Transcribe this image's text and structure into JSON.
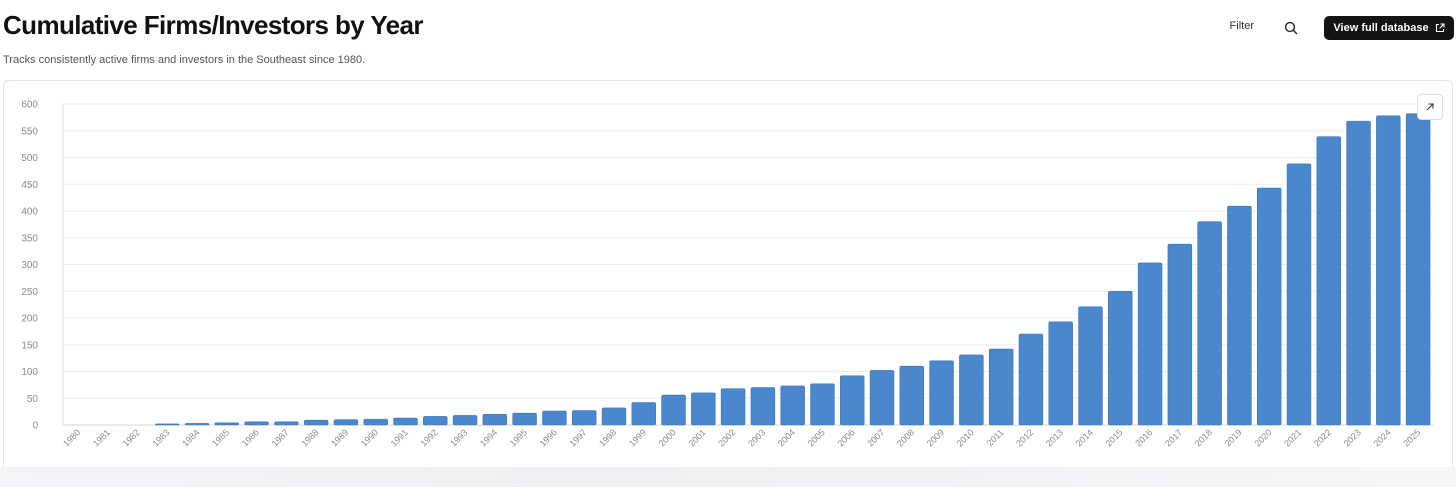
{
  "header": {
    "title": "Cumulative Firms/Investors by Year",
    "subtitle": "Tracks consistently active firms and investors in the Southeast since 1980.",
    "filter_label": "Filter",
    "view_db_label": "View full database"
  },
  "icons": {
    "search": "search-icon",
    "external": "external-link-icon",
    "expand": "expand-icon"
  },
  "colors": {
    "bar": "#4a87cc",
    "bar_stroke": "#3b75b8",
    "button_bg": "#141414"
  },
  "chart_data": {
    "type": "bar",
    "title": "Cumulative Firms/Investors by Year",
    "xlabel": "",
    "ylabel": "",
    "ylim": [
      0,
      600
    ],
    "yticks": [
      0,
      50,
      100,
      150,
      200,
      250,
      300,
      350,
      400,
      450,
      500,
      550,
      600
    ],
    "grid": true,
    "categories": [
      "1980",
      "1981",
      "1982",
      "1983",
      "1984",
      "1985",
      "1986",
      "1987",
      "1988",
      "1989",
      "1990",
      "1991",
      "1992",
      "1993",
      "1994",
      "1995",
      "1996",
      "1997",
      "1998",
      "1999",
      "2000",
      "2001",
      "2002",
      "2003",
      "2004",
      "2005",
      "2006",
      "2007",
      "2008",
      "2009",
      "2010",
      "2011",
      "2012",
      "2013",
      "2014",
      "2015",
      "2016",
      "2017",
      "2018",
      "2019",
      "2020",
      "2021",
      "2022",
      "2023",
      "2024",
      "2025"
    ],
    "values": [
      0,
      0,
      0,
      2,
      3,
      4,
      6,
      6,
      9,
      10,
      11,
      13,
      16,
      18,
      20,
      22,
      26,
      27,
      32,
      42,
      56,
      60,
      68,
      70,
      73,
      77,
      92,
      102,
      110,
      120,
      131,
      142,
      170,
      193,
      221,
      250,
      303,
      338,
      380,
      409,
      443,
      488,
      539,
      568,
      578,
      582
    ]
  }
}
